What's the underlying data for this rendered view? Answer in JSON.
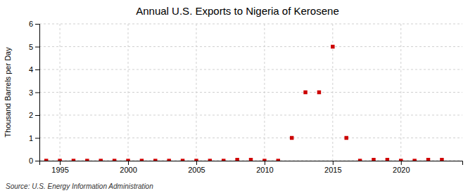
{
  "chart_data": {
    "type": "scatter",
    "title": "Annual U.S. Exports to Nigeria of Kerosene",
    "ylabel": "Thousand Barrels per Day",
    "source": "Source: U.S. Energy Information Administration",
    "x": [
      1994,
      1995,
      1996,
      1997,
      1998,
      1999,
      2000,
      2001,
      2002,
      2003,
      2004,
      2005,
      2006,
      2007,
      2008,
      2009,
      2010,
      2011,
      2012,
      2013,
      2014,
      2015,
      2016,
      2017,
      2018,
      2019,
      2020,
      2021,
      2022,
      2023
    ],
    "values": [
      0,
      0,
      0,
      0,
      0,
      0,
      0,
      0,
      0,
      0,
      0,
      0,
      0,
      0,
      0.04,
      0.04,
      0,
      0,
      1,
      3,
      3,
      5,
      1,
      0,
      0.04,
      0.04,
      0,
      0,
      0.04,
      0.04
    ],
    "color": "#cc0000",
    "marker": "square",
    "xlim": [
      1993.5,
      2024.5
    ],
    "ylim": [
      0,
      6
    ],
    "xticks": [
      1995,
      2000,
      2005,
      2010,
      2015,
      2020
    ],
    "yticks": [
      0,
      1,
      2,
      3,
      4,
      5,
      6
    ],
    "grid": true
  }
}
